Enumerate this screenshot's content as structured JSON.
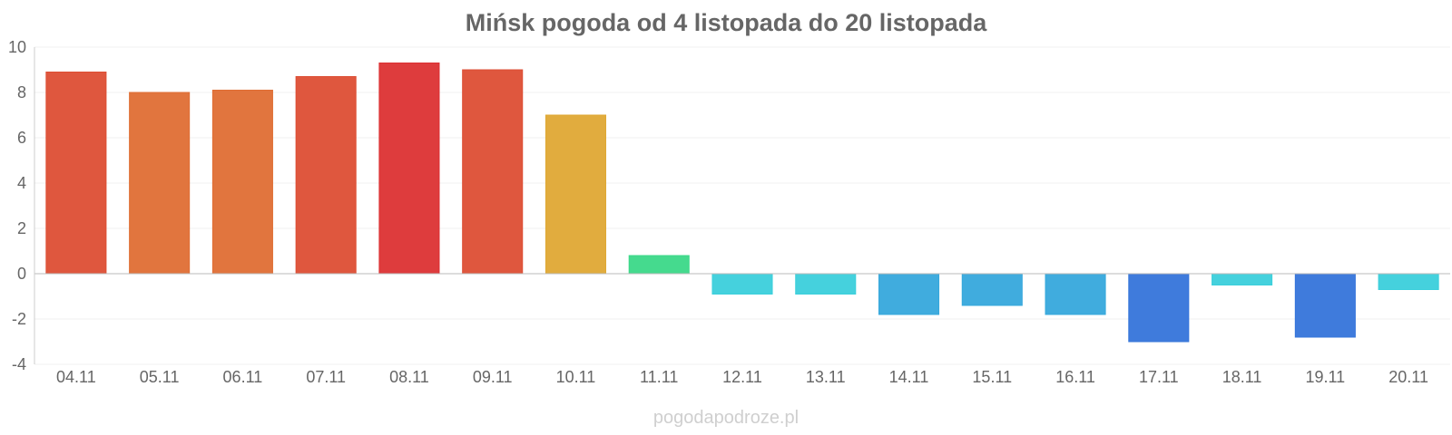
{
  "chart_data": {
    "type": "bar",
    "title": "Mińsk pogoda od 4 listopada do 20 listopada",
    "xlabel": "",
    "ylabel": "",
    "categories": [
      "04.11",
      "05.11",
      "06.11",
      "07.11",
      "08.11",
      "09.11",
      "10.11",
      "11.11",
      "12.11",
      "13.11",
      "14.11",
      "15.11",
      "16.11",
      "17.11",
      "18.11",
      "19.11",
      "20.11"
    ],
    "values": [
      8.9,
      8.0,
      8.1,
      8.7,
      9.3,
      9.0,
      7.0,
      0.8,
      -0.9,
      -0.9,
      -1.8,
      -1.4,
      -1.8,
      -3.0,
      -0.5,
      -2.8,
      -0.7
    ],
    "colors": [
      "#dd4e34",
      "#df6e34",
      "#df6e34",
      "#dd4e34",
      "#dc3133",
      "#dd4e34",
      "#dfa834",
      "#3bd888",
      "#3bcfdb",
      "#3bcfdb",
      "#36a8dc",
      "#36a8dc",
      "#36a8dc",
      "#3574da",
      "#3bcfdb",
      "#3574da",
      "#3bcfdb"
    ],
    "ylim": [
      -4,
      10
    ],
    "yticks": [
      -4,
      -2,
      0,
      2,
      4,
      6,
      8,
      10
    ],
    "grid": true,
    "legend": "none"
  },
  "watermark": "pogodapodroze.pl"
}
